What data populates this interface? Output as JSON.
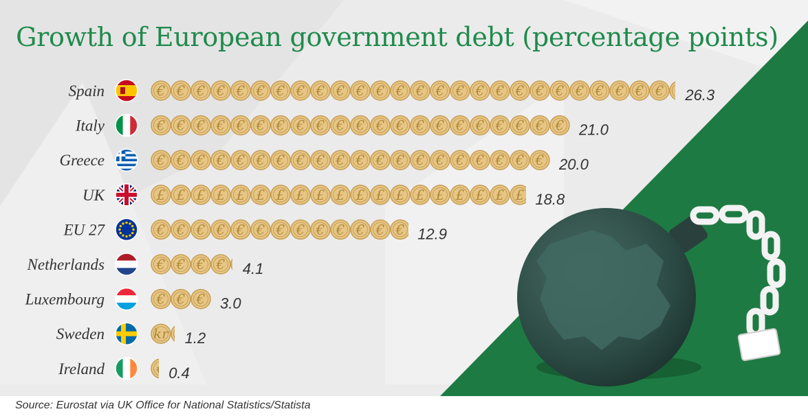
{
  "chart_data": {
    "type": "bar",
    "title": "Growth of European government debt (percentage points)",
    "categories": [
      "Spain",
      "Italy",
      "Greece",
      "UK",
      "EU 27",
      "Netherlands",
      "Luxembourg",
      "Sweden",
      "Ireland"
    ],
    "values": [
      26.3,
      21.0,
      20.0,
      18.8,
      12.9,
      4.1,
      3.0,
      1.2,
      0.4
    ],
    "value_labels": [
      "26.3",
      "21.0",
      "20.0",
      "18.8",
      "12.9",
      "4.1",
      "3.0",
      "1.2",
      "0.4"
    ],
    "coin_symbols": [
      "€",
      "€",
      "€",
      "£",
      "€",
      "€",
      "€",
      "kr",
      "€"
    ],
    "flags": [
      "spain-flag-icon",
      "italy-flag-icon",
      "greece-flag-icon",
      "uk-flag-icon",
      "eu-flag-icon",
      "netherlands-flag-icon",
      "luxembourg-flag-icon",
      "sweden-flag-icon",
      "ireland-flag-icon"
    ],
    "orientation": "horizontal",
    "unit_per_coin": 1,
    "grid": false
  },
  "source": "Source: Eurostat via UK Office for National Statistics/Statista",
  "colors": {
    "title": "#1f8a4c",
    "green_panel": "#1e7a43",
    "coin_fill": "#e7c685",
    "coin_edge": "#c79e55",
    "bomb": "#2e4a44",
    "text": "#333333"
  },
  "illustration": {
    "icon": "wrecking-ball-europe-icon"
  }
}
